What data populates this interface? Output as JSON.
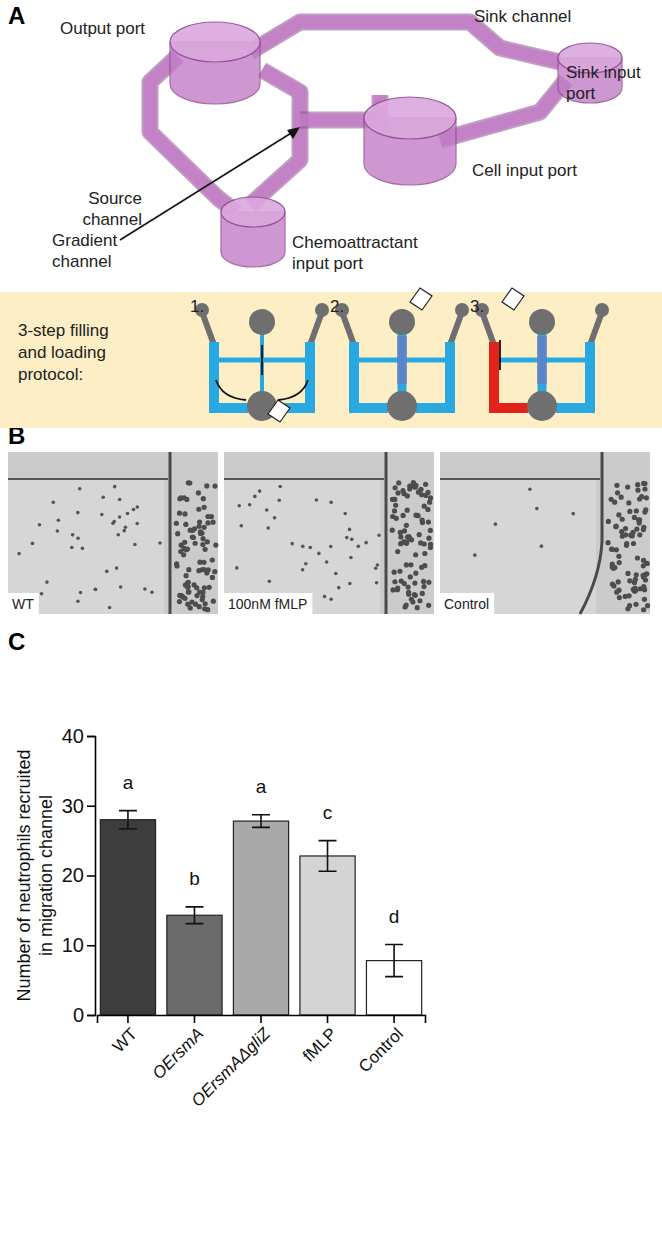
{
  "panel_labels": [
    "A",
    "B",
    "C"
  ],
  "diagram": {
    "labels": [
      {
        "lines": [
          "Output port"
        ]
      },
      {
        "lines": [
          "Sink channel"
        ]
      },
      {
        "lines": [
          "Sink input",
          "port"
        ]
      },
      {
        "lines": [
          "Source",
          "channel"
        ]
      },
      {
        "lines": [
          "Cell input port"
        ]
      },
      {
        "lines": [
          "Gradient",
          "channel"
        ]
      },
      {
        "lines": [
          "Chemoattractant",
          "input port"
        ]
      }
    ],
    "protocol_title_lines": [
      "3-step filling",
      "and loading",
      "protocol:"
    ],
    "steps": [
      "1.",
      "2.",
      "3."
    ]
  },
  "images": {
    "labels": [
      "WT",
      "100nM fMLP",
      "Control"
    ]
  },
  "chart_data": {
    "type": "bar",
    "categories": [
      "WT",
      "OErsmA",
      "OErsmAΔgliZ",
      "fMLP",
      "Control"
    ],
    "values": [
      28,
      14.3,
      27.8,
      22.8,
      7.8
    ],
    "errors": [
      1.3,
      1.2,
      0.9,
      2.2,
      2.3
    ],
    "annotations": [
      "a",
      "b",
      "a",
      "c",
      "d"
    ],
    "colors": [
      "#3d3d3d",
      "#6b6b6b",
      "#a9a9a9",
      "#d4d4d4",
      "#ffffff"
    ],
    "y_label": [
      "Number of neutrophils recruited",
      "in migration channel"
    ],
    "ylim": [
      0,
      40
    ],
    "yticks": [
      0,
      10,
      20,
      30,
      40
    ]
  }
}
